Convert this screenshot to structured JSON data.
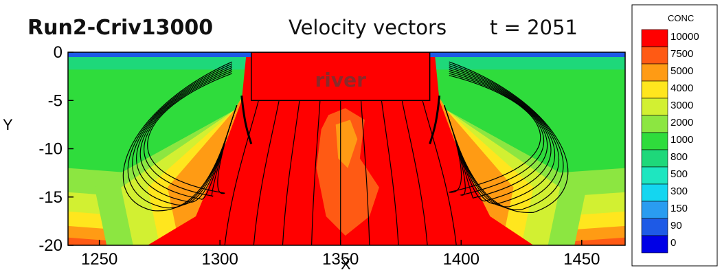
{
  "chart_data": {
    "type": "heatmap",
    "run_label": "Run2-Criv13000",
    "title": "Velocity vectors",
    "time_label": "t = 2051",
    "xlabel": "X",
    "ylabel": "Y",
    "xlim": [
      1237,
      1468
    ],
    "ylim": [
      -20,
      0
    ],
    "x_ticks": [
      1250,
      1300,
      1350,
      1400,
      1450
    ],
    "y_ticks": [
      0,
      -5,
      -10,
      -15,
      -20
    ],
    "river_label": "river",
    "river_box": {
      "x0": 1313,
      "x1": 1387,
      "y0": 0,
      "y1": -5
    },
    "legend": {
      "title": "CONC",
      "levels": [
        {
          "label": "10000",
          "color": "#ff0000"
        },
        {
          "label": "7500",
          "color": "#ff5a14"
        },
        {
          "label": "5000",
          "color": "#ff9b14"
        },
        {
          "label": "4000",
          "color": "#ffe61e"
        },
        {
          "label": "3000",
          "color": "#d2f032"
        },
        {
          "label": "2000",
          "color": "#8ce641"
        },
        {
          "label": "1000",
          "color": "#2fdc3c"
        },
        {
          "label": "800",
          "color": "#1ed87a"
        },
        {
          "label": "500",
          "color": "#1ee6c0"
        },
        {
          "label": "300",
          "color": "#14d6f0"
        },
        {
          "label": "150",
          "color": "#2a9cf0"
        },
        {
          "label": "90",
          "color": "#1e5ae6"
        },
        {
          "label": "0",
          "color": "#0000e6"
        }
      ]
    },
    "background_colors": {
      "far_field": "#2fdc3c",
      "plume": "#ff0000",
      "surface": "#1e5ae6"
    }
  }
}
